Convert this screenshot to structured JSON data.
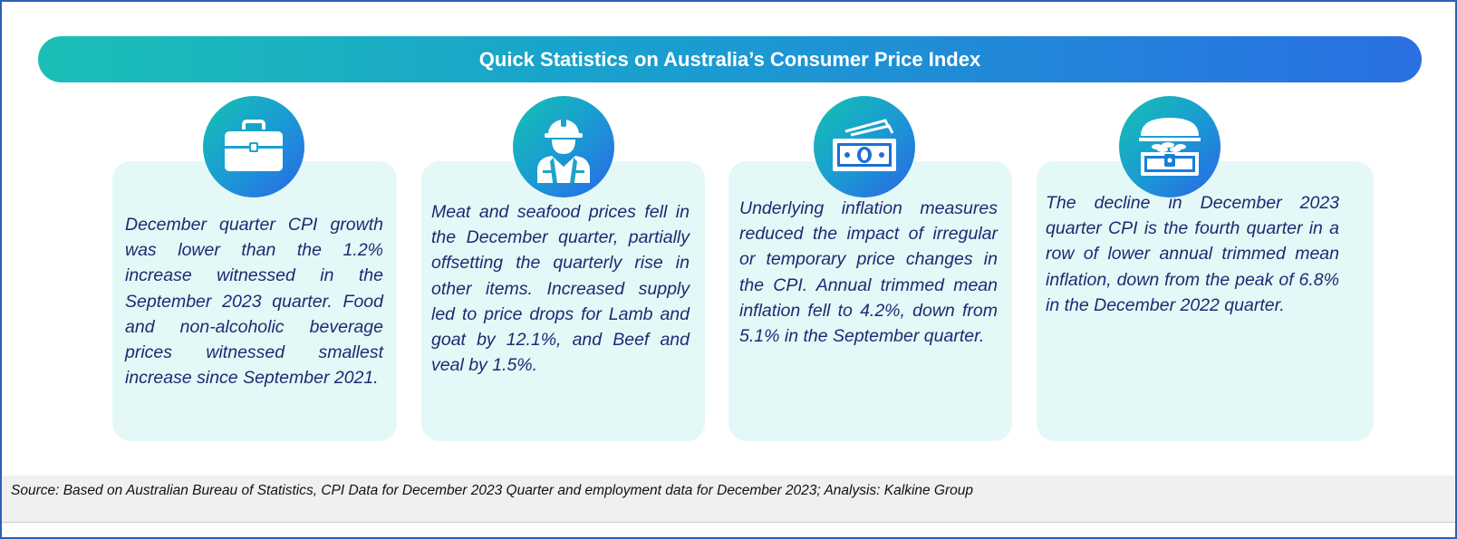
{
  "banner": {
    "title": "Quick Statistics on Australia’s Consumer Price Index"
  },
  "cards": [
    {
      "icon": "briefcase-icon",
      "text": "December quarter CPI growth was lower than the 1.2% increase witnessed in the September 2023 quarter. Food and non-alcoholic beverage prices witnessed smallest increase since September 2021."
    },
    {
      "icon": "worker-icon",
      "text": "Meat and seafood prices fell in the December quarter, partially offsetting the quarterly rise in other items. Increased supply led to price drops for Lamb and goat by 12.1%, and Beef and veal by 1.5%."
    },
    {
      "icon": "banknotes-icon",
      "text": "Underlying inflation measures reduced the impact of irregular or temporary price changes in the CPI. Annual trimmed mean inflation fell to 4.2%, down from 5.1% in the September quarter."
    },
    {
      "icon": "treasure-chest-icon",
      "text": " The decline in December 2023 quarter CPI is the fourth quarter in a row of lower annual trimmed mean inflation, down from the peak of 6.8% in the December 2022 quarter."
    }
  ],
  "source": {
    "text": "Source: Based on Australian Bureau of Statistics, CPI Data for December 2023 Quarter and employment data for December 2023; Analysis: Kalkine Group"
  },
  "colors": {
    "banner_start": "#1bbfb6",
    "banner_end": "#2a6fe3",
    "card_bg": "#e4f8f7",
    "text": "#1d2a72"
  }
}
